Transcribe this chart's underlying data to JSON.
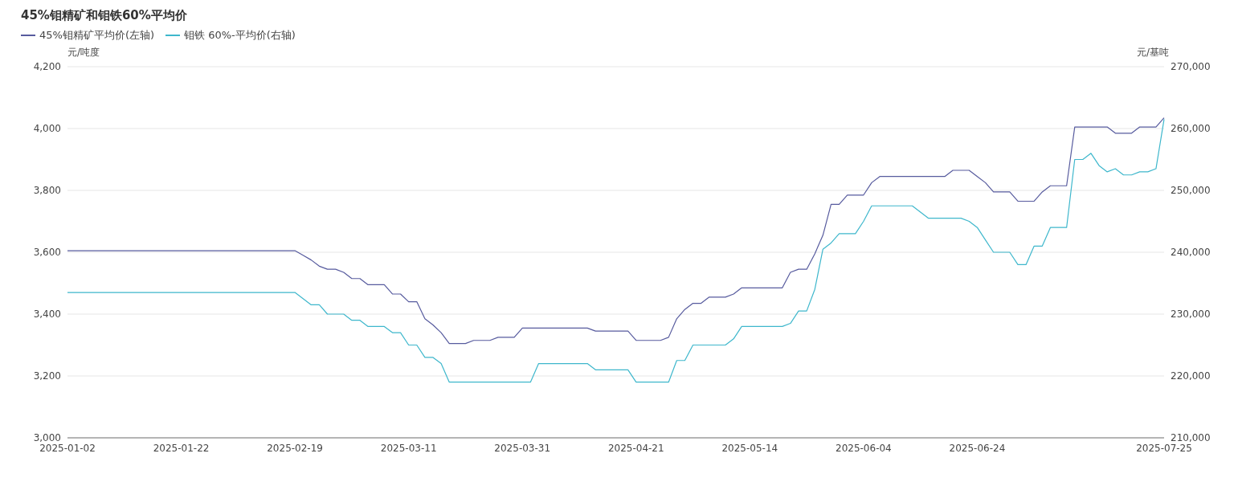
{
  "chart_data": {
    "type": "line",
    "title": "45%钼精矿和钼铁60%平均价",
    "ylabel": "元/吨度",
    "y2label": "元/基吨",
    "legend": "top left",
    "grid": "y",
    "marker": "none",
    "line_style": "solid",
    "categories": [
      "2025-01-02",
      null,
      null,
      null,
      null,
      null,
      null,
      null,
      null,
      null,
      null,
      null,
      null,
      null,
      "2025-01-22",
      null,
      null,
      null,
      null,
      null,
      null,
      null,
      null,
      null,
      null,
      null,
      null,
      null,
      "2025-02-19",
      null,
      null,
      null,
      null,
      null,
      null,
      null,
      null,
      null,
      null,
      null,
      null,
      null,
      "2025-03-11",
      null,
      null,
      null,
      null,
      null,
      null,
      null,
      null,
      null,
      null,
      null,
      null,
      null,
      "2025-03-31",
      null,
      null,
      null,
      null,
      null,
      null,
      null,
      null,
      null,
      null,
      null,
      null,
      null,
      "2025-04-21",
      null,
      null,
      null,
      null,
      null,
      null,
      null,
      null,
      null,
      null,
      null,
      null,
      null,
      "2025-05-14",
      null,
      null,
      null,
      null,
      null,
      null,
      null,
      null,
      null,
      null,
      null,
      null,
      null,
      "2025-06-04",
      null,
      null,
      null,
      null,
      null,
      null,
      null,
      null,
      null,
      null,
      null,
      null,
      null,
      "2025-06-24",
      null,
      null,
      null,
      null,
      null,
      null,
      null,
      null,
      null,
      null,
      null,
      null,
      null,
      null,
      null,
      null,
      null,
      null,
      null,
      null,
      null,
      null,
      "2025-07-25"
    ],
    "ylim": [
      3000,
      4200
    ],
    "yticks": [
      {
        "value": 3000,
        "label": "3,000"
      },
      {
        "value": 3200,
        "label": "3,200"
      },
      {
        "value": 3400,
        "label": "3,400"
      },
      {
        "value": 3600,
        "label": "3,600"
      },
      {
        "value": 3800,
        "label": "3,800"
      },
      {
        "value": 4000,
        "label": "4,000"
      },
      {
        "value": 4200,
        "label": "4,200"
      }
    ],
    "y2lim": [
      210000,
      270000
    ],
    "y2ticks": [
      {
        "value": 210000,
        "label": "210,000"
      },
      {
        "value": 220000,
        "label": "220,000"
      },
      {
        "value": 230000,
        "label": "230,000"
      },
      {
        "value": 240000,
        "label": "240,000"
      },
      {
        "value": 250000,
        "label": "250,000"
      },
      {
        "value": 260000,
        "label": "260,000"
      },
      {
        "value": 270000,
        "label": "270,000"
      }
    ],
    "series": [
      {
        "name": "45%钼精矿平均价(左轴)",
        "color": "#575b9e",
        "values": [
          3605,
          3605,
          3605,
          3605,
          3605,
          3605,
          3605,
          3605,
          3605,
          3605,
          3605,
          3605,
          3605,
          3605,
          3605,
          3605,
          3605,
          3605,
          3605,
          3605,
          3605,
          3605,
          3605,
          3605,
          3605,
          3605,
          3605,
          3605,
          3605,
          3590,
          3575,
          3555,
          3545,
          3545,
          3535,
          3515,
          3515,
          3495,
          3495,
          3495,
          3465,
          3465,
          3440,
          3440,
          3385,
          3365,
          3340,
          3305,
          3305,
          3305,
          3315,
          3315,
          3315,
          3325,
          3325,
          3325,
          3355,
          3355,
          3355,
          3355,
          3355,
          3355,
          3355,
          3355,
          3355,
          3345,
          3345,
          3345,
          3345,
          3345,
          3315,
          3315,
          3315,
          3315,
          3325,
          3385,
          3415,
          3435,
          3435,
          3455,
          3455,
          3455,
          3465,
          3485,
          3485,
          3485,
          3485,
          3485,
          3485,
          3535,
          3545,
          3545,
          3595,
          3655,
          3755,
          3755,
          3785,
          3785,
          3785,
          3825,
          3845,
          3845,
          3845,
          3845,
          3845,
          3845,
          3845,
          3845,
          3845,
          3865,
          3865,
          3865,
          3845,
          3825,
          3795,
          3795,
          3795,
          3765,
          3765,
          3765,
          3795,
          3815,
          3815,
          3815,
          4005,
          4005,
          4005,
          4005,
          4005,
          3985,
          3985,
          3985,
          4005,
          4005,
          4005,
          4035
        ]
      },
      {
        "name": "钼铁 60%-平均价(右轴)",
        "color": "#3eb7cc",
        "axis": "y2",
        "values": [
          233500,
          233500,
          233500,
          233500,
          233500,
          233500,
          233500,
          233500,
          233500,
          233500,
          233500,
          233500,
          233500,
          233500,
          233500,
          233500,
          233500,
          233500,
          233500,
          233500,
          233500,
          233500,
          233500,
          233500,
          233500,
          233500,
          233500,
          233500,
          233500,
          232500,
          231500,
          231500,
          230000,
          230000,
          230000,
          229000,
          229000,
          228000,
          228000,
          228000,
          227000,
          227000,
          225000,
          225000,
          223000,
          223000,
          222000,
          219000,
          219000,
          219000,
          219000,
          219000,
          219000,
          219000,
          219000,
          219000,
          219000,
          219000,
          222000,
          222000,
          222000,
          222000,
          222000,
          222000,
          222000,
          221000,
          221000,
          221000,
          221000,
          221000,
          219000,
          219000,
          219000,
          219000,
          219000,
          222500,
          222500,
          225000,
          225000,
          225000,
          225000,
          225000,
          226000,
          228000,
          228000,
          228000,
          228000,
          228000,
          228000,
          228500,
          230500,
          230500,
          234000,
          240500,
          241500,
          243000,
          243000,
          243000,
          245000,
          247500,
          247500,
          247500,
          247500,
          247500,
          247500,
          246500,
          245500,
          245500,
          245500,
          245500,
          245500,
          245000,
          244000,
          242000,
          240000,
          240000,
          240000,
          238000,
          238000,
          241000,
          241000,
          244000,
          244000,
          244000,
          255000,
          255000,
          256000,
          254000,
          253000,
          253500,
          252500,
          252500,
          253000,
          253000,
          253500,
          261500
        ]
      }
    ]
  }
}
